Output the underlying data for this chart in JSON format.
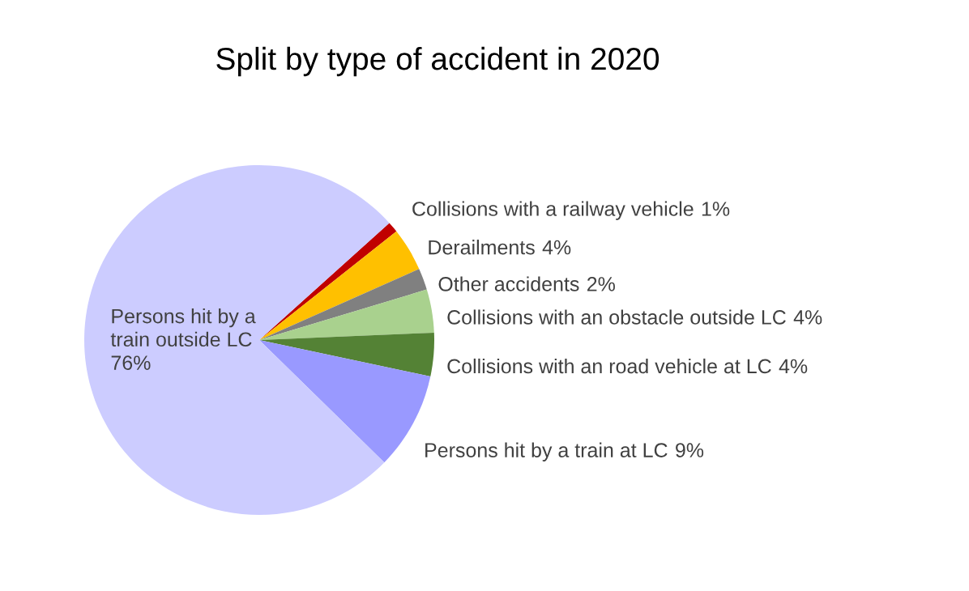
{
  "chart_data": {
    "type": "pie",
    "title": "Split by type of accident in 2020",
    "categories": [
      "Collisions with a railway vehicle",
      "Derailments",
      "Other accidents",
      "Collisions with an obstacle outside LC",
      "Collisions with an road vehicle at LC",
      "Persons hit by a train at LC",
      "Persons hit by a train outside LC"
    ],
    "values": [
      1,
      4,
      2,
      4,
      4,
      9,
      76
    ],
    "colors": [
      "#c00000",
      "#ffc000",
      "#808080",
      "#a9d18e",
      "#548235",
      "#9999ff",
      "#ccccff"
    ],
    "value_labels": [
      "1%",
      "4%",
      "2%",
      "4%",
      "4%",
      "9%",
      "76%"
    ],
    "legend": false
  }
}
